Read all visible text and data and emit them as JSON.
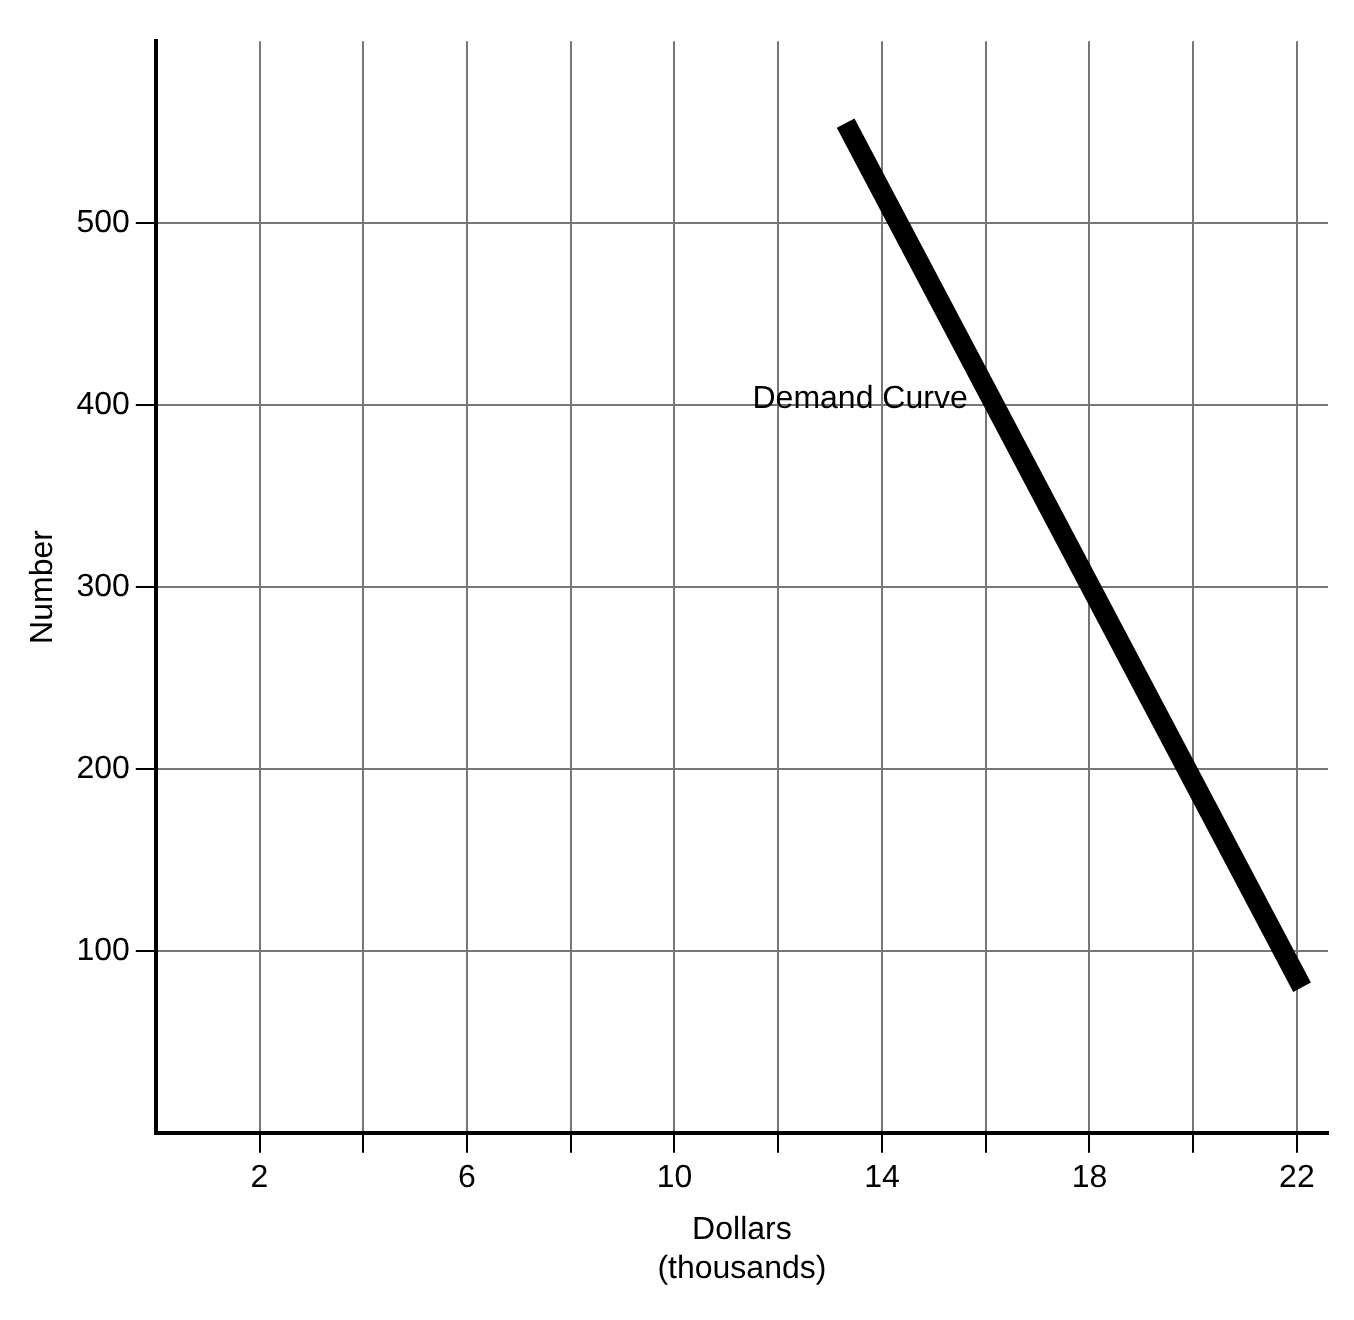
{
  "chart_data": {
    "type": "line",
    "xlabel": "Dollars\n(thousands)",
    "ylabel": "Number",
    "series": [
      {
        "name": "Demand Curve",
        "color": "#000000",
        "x": [
          13.3,
          22.1
        ],
        "values": [
          555,
          80
        ]
      }
    ],
    "xlim": [
      0,
      22.6
    ],
    "ylim": [
      0,
      600
    ],
    "xticks": [
      2,
      {
        "value": 4,
        "label": null
      },
      6,
      {
        "value": 8,
        "label": null
      },
      10,
      {
        "value": 12,
        "label": null
      },
      14,
      {
        "value": 16,
        "label": null
      },
      18,
      {
        "value": 20,
        "label": null
      },
      22
    ],
    "yticks": [
      100,
      200,
      300,
      400,
      500
    ],
    "grid": true,
    "legend": false,
    "marker": "none",
    "line_style": "solid"
  }
}
